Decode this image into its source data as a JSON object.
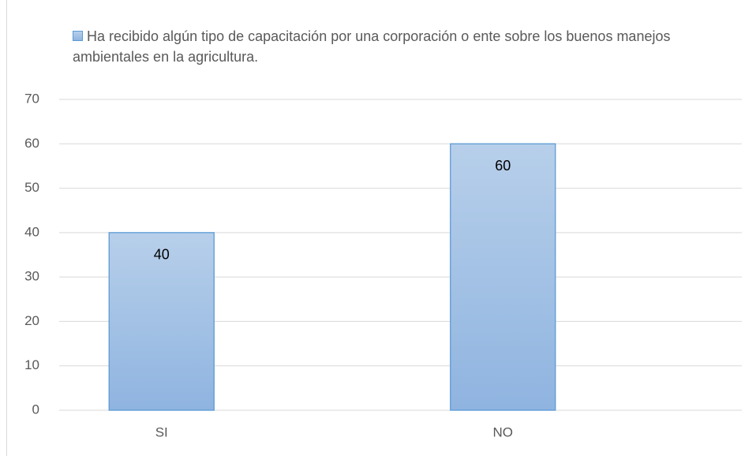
{
  "chart_data": {
    "type": "bar",
    "categories": [
      "SI",
      "NO"
    ],
    "series": [
      {
        "name": "Ha recibido algún tipo de capacitación por una corporación o ente sobre los buenos manejos ambientales en la agricultura.",
        "color": "#5b9bd5",
        "values": [
          40,
          60
        ]
      }
    ],
    "ylim": [
      0,
      70
    ],
    "yticks": [
      0,
      10,
      20,
      30,
      40,
      50,
      60,
      70
    ],
    "grid": true,
    "legend": "top"
  }
}
